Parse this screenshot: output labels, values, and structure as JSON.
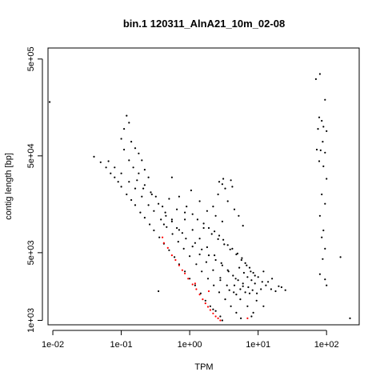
{
  "chart_data": {
    "type": "scatter",
    "title": "bin.1 120311_AlnA21_10m_02-08",
    "xlabel": "TPM",
    "ylabel": "contig length [bp]",
    "x_scale": "log",
    "y_scale": "log",
    "xlim": [
      0.0085,
      300
    ],
    "ylim": [
      900,
      650000
    ],
    "x_ticks": [
      {
        "value": 0.01,
        "label": "1e-02"
      },
      {
        "value": 0.1,
        "label": "1e-01"
      },
      {
        "value": 1,
        "label": "1e+00"
      },
      {
        "value": 10,
        "label": "1e+01"
      },
      {
        "value": 100,
        "label": "1e+02"
      }
    ],
    "y_ticks": [
      {
        "value": 1000,
        "label": "1e+03"
      },
      {
        "value": 5000,
        "label": "5e+03"
      },
      {
        "value": 50000,
        "label": "5e+04"
      },
      {
        "value": 500000,
        "label": "5e+05"
      }
    ],
    "grid": false,
    "colors": {
      "points": "#000000",
      "highlight": "#ff0000",
      "frame": "#000000"
    },
    "series": [
      {
        "color": "#000000",
        "points": [
          [
            0.009,
            180000
          ],
          [
            0.04,
            49000
          ],
          [
            0.05,
            43000
          ],
          [
            0.06,
            38000
          ],
          [
            0.07,
            33000
          ],
          [
            0.08,
            30000
          ],
          [
            0.09,
            27000
          ],
          [
            0.1,
            24000
          ],
          [
            0.12,
            20000
          ],
          [
            0.14,
            17500
          ],
          [
            0.16,
            15500
          ],
          [
            0.19,
            13000
          ],
          [
            0.22,
            11500
          ],
          [
            0.26,
            9800
          ],
          [
            0.3,
            8500
          ],
          [
            0.36,
            7200
          ],
          [
            0.42,
            6200
          ],
          [
            0.5,
            5300
          ],
          [
            0.6,
            4500
          ],
          [
            0.7,
            3800
          ],
          [
            0.85,
            3200
          ],
          [
            1.0,
            2700
          ],
          [
            1.2,
            2300
          ],
          [
            1.45,
            1900
          ],
          [
            1.7,
            1600
          ],
          [
            2.0,
            1400
          ],
          [
            2.4,
            1250
          ],
          [
            2.8,
            1100
          ],
          [
            3.0,
            1000
          ],
          [
            0.065,
            44000
          ],
          [
            0.08,
            38000
          ],
          [
            0.1,
            33000
          ],
          [
            0.13,
            27000
          ],
          [
            0.16,
            23000
          ],
          [
            0.2,
            19000
          ],
          [
            0.25,
            15500
          ],
          [
            0.3,
            13500
          ],
          [
            0.38,
            11000
          ],
          [
            0.46,
            9200
          ],
          [
            0.56,
            7800
          ],
          [
            0.68,
            6500
          ],
          [
            0.82,
            5500
          ],
          [
            1.0,
            4600
          ],
          [
            1.25,
            3800
          ],
          [
            1.5,
            3200
          ],
          [
            1.85,
            2700
          ],
          [
            2.25,
            2300
          ],
          [
            2.7,
            1950
          ],
          [
            3.3,
            1650
          ],
          [
            4.0,
            1400
          ],
          [
            4.8,
            1200
          ],
          [
            5.6,
            1050
          ],
          [
            0.22,
            25000
          ],
          [
            0.28,
            20000
          ],
          [
            0.35,
            16000
          ],
          [
            0.44,
            13000
          ],
          [
            0.55,
            10500
          ],
          [
            0.7,
            8600
          ],
          [
            0.88,
            7000
          ],
          [
            1.1,
            5800
          ],
          [
            1.4,
            4800
          ],
          [
            1.75,
            4000
          ],
          [
            2.2,
            3300
          ],
          [
            2.8,
            2750
          ],
          [
            3.5,
            2300
          ],
          [
            4.4,
            1950
          ],
          [
            5.5,
            1650
          ],
          [
            7.0,
            1400
          ],
          [
            8.5,
            1200
          ],
          [
            0.5,
            18000
          ],
          [
            0.65,
            14000
          ],
          [
            0.85,
            11000
          ],
          [
            1.1,
            8600
          ],
          [
            1.4,
            7000
          ],
          [
            1.8,
            5700
          ],
          [
            2.3,
            4700
          ],
          [
            2.9,
            3900
          ],
          [
            3.7,
            3200
          ],
          [
            4.7,
            2700
          ],
          [
            6.0,
            2250
          ],
          [
            7.5,
            1900
          ],
          [
            9.5,
            1600
          ],
          [
            12.0,
            1400
          ],
          [
            0.12,
            130000
          ],
          [
            0.13,
            110000
          ],
          [
            0.11,
            95000
          ],
          [
            0.1,
            75000
          ],
          [
            0.14,
            70000
          ],
          [
            0.11,
            58000
          ],
          [
            0.13,
            45000
          ],
          [
            0.16,
            60000
          ],
          [
            0.18,
            53000
          ],
          [
            0.15,
            38000
          ],
          [
            0.2,
            45000
          ],
          [
            0.18,
            33000
          ],
          [
            0.22,
            36000
          ],
          [
            0.17,
            28000
          ],
          [
            0.25,
            30000
          ],
          [
            0.21,
            23000
          ],
          [
            0.27,
            21000
          ],
          [
            0.32,
            19000
          ],
          [
            0.4,
            15000
          ],
          [
            0.45,
            12000
          ],
          [
            0.55,
            11000
          ],
          [
            0.65,
            9000
          ],
          [
            0.78,
            8000
          ],
          [
            0.42,
            9800
          ],
          [
            0.85,
            13000
          ],
          [
            1.1,
            12500
          ],
          [
            1.3,
            11000
          ],
          [
            1.6,
            10000
          ],
          [
            1.9,
            9000
          ],
          [
            2.3,
            8300
          ],
          [
            2.7,
            7500
          ],
          [
            3.1,
            6800
          ],
          [
            3.6,
            6000
          ],
          [
            4.2,
            5500
          ],
          [
            5.0,
            4900
          ],
          [
            5.8,
            4400
          ],
          [
            6.5,
            3900
          ],
          [
            7.5,
            3500
          ],
          [
            8.5,
            3100
          ],
          [
            10.0,
            2800
          ],
          [
            11.5,
            2500
          ],
          [
            13.0,
            2300
          ],
          [
            15.5,
            2100
          ],
          [
            18.0,
            2000
          ],
          [
            14.0,
            2500
          ],
          [
            16.0,
            2700
          ],
          [
            12.0,
            3200
          ],
          [
            0.55,
            30000
          ],
          [
            0.7,
            19000
          ],
          [
            0.9,
            15000
          ],
          [
            1.05,
            22000
          ],
          [
            1.4,
            17000
          ],
          [
            1.8,
            13500
          ],
          [
            2.2,
            15000
          ],
          [
            2.6,
            20000
          ],
          [
            3.1,
            29000
          ],
          [
            3.3,
            23000
          ],
          [
            2.7,
            27000
          ],
          [
            3.0,
            25500
          ],
          [
            4.0,
            28000
          ],
          [
            4.2,
            24000
          ],
          [
            3.6,
            17000
          ],
          [
            4.5,
            14000
          ],
          [
            5.2,
            12000
          ],
          [
            6.0,
            9500
          ],
          [
            3.0,
            10500
          ],
          [
            2.4,
            12000
          ],
          [
            1.6,
            9000
          ],
          [
            2.1,
            7800
          ],
          [
            2.6,
            6900
          ],
          [
            3.2,
            6100
          ],
          [
            3.9,
            5400
          ],
          [
            4.8,
            4800
          ],
          [
            5.7,
            4200
          ],
          [
            6.8,
            3700
          ],
          [
            7.8,
            3200
          ],
          [
            9.0,
            2900
          ],
          [
            1.2,
            6300
          ],
          [
            1.5,
            5400
          ],
          [
            1.9,
            4700
          ],
          [
            2.4,
            4200
          ],
          [
            3.0,
            3700
          ],
          [
            3.6,
            3300
          ],
          [
            4.3,
            2900
          ],
          [
            5.1,
            2600
          ],
          [
            6.0,
            2400
          ],
          [
            7.2,
            2200
          ],
          [
            8.3,
            2050
          ],
          [
            9.6,
            1900
          ],
          [
            4.5,
            2300
          ],
          [
            5.5,
            2100
          ],
          [
            6.5,
            1950
          ],
          [
            3.8,
            2050
          ],
          [
            4.8,
            1850
          ],
          [
            2.8,
            2600
          ],
          [
            7.0,
            2800
          ],
          [
            8.0,
            2600
          ],
          [
            11.0,
            2100
          ],
          [
            9.0,
            2400
          ],
          [
            6.2,
            3100
          ],
          [
            5.3,
            3500
          ],
          [
            0.35,
            2000
          ],
          [
            2.2,
            1300
          ],
          [
            8.0,
            1100
          ],
          [
            22.0,
            2200
          ],
          [
            25.0,
            2050
          ],
          [
            20.0,
            2250
          ],
          [
            70.0,
            310000
          ],
          [
            80.0,
            350000
          ],
          [
            95.0,
            190000
          ],
          [
            78.0,
            125000
          ],
          [
            85.0,
            115000
          ],
          [
            90.0,
            100000
          ],
          [
            75.0,
            95000
          ],
          [
            100.0,
            90000
          ],
          [
            88.0,
            70000
          ],
          [
            72.0,
            58000
          ],
          [
            82.0,
            57000
          ],
          [
            95.0,
            54000
          ],
          [
            78.0,
            44000
          ],
          [
            90.0,
            39000
          ],
          [
            100.0,
            29000
          ],
          [
            85.0,
            20000
          ],
          [
            95.0,
            16000
          ],
          [
            80.0,
            12000
          ],
          [
            90.0,
            8500
          ],
          [
            85.0,
            7200
          ],
          [
            95.0,
            5500
          ],
          [
            88.0,
            4300
          ],
          [
            80.0,
            3000
          ],
          [
            95.0,
            2650
          ],
          [
            100.0,
            2300
          ],
          [
            160.0,
            4500
          ],
          [
            220.0,
            1050
          ]
        ]
      },
      {
        "color": "#ff0000",
        "points": [
          [
            0.42,
            6300
          ],
          [
            0.48,
            5600
          ],
          [
            0.55,
            4700
          ],
          [
            0.62,
            4200
          ],
          [
            0.7,
            3700
          ],
          [
            0.78,
            3300
          ],
          [
            0.85,
            3050
          ],
          [
            0.95,
            2700
          ],
          [
            1.1,
            2350
          ],
          [
            1.25,
            2100
          ],
          [
            1.4,
            1850
          ],
          [
            1.55,
            1650
          ],
          [
            1.7,
            1500
          ],
          [
            1.85,
            1380
          ],
          [
            2.0,
            1280
          ],
          [
            2.2,
            1180
          ],
          [
            2.4,
            1100
          ],
          [
            2.6,
            1050
          ],
          [
            2.8,
            1000
          ],
          [
            1.2,
            2400
          ],
          [
            0.4,
            7200
          ],
          [
            7.0,
            1050
          ],
          [
            1.9,
            2000
          ]
        ]
      }
    ]
  }
}
